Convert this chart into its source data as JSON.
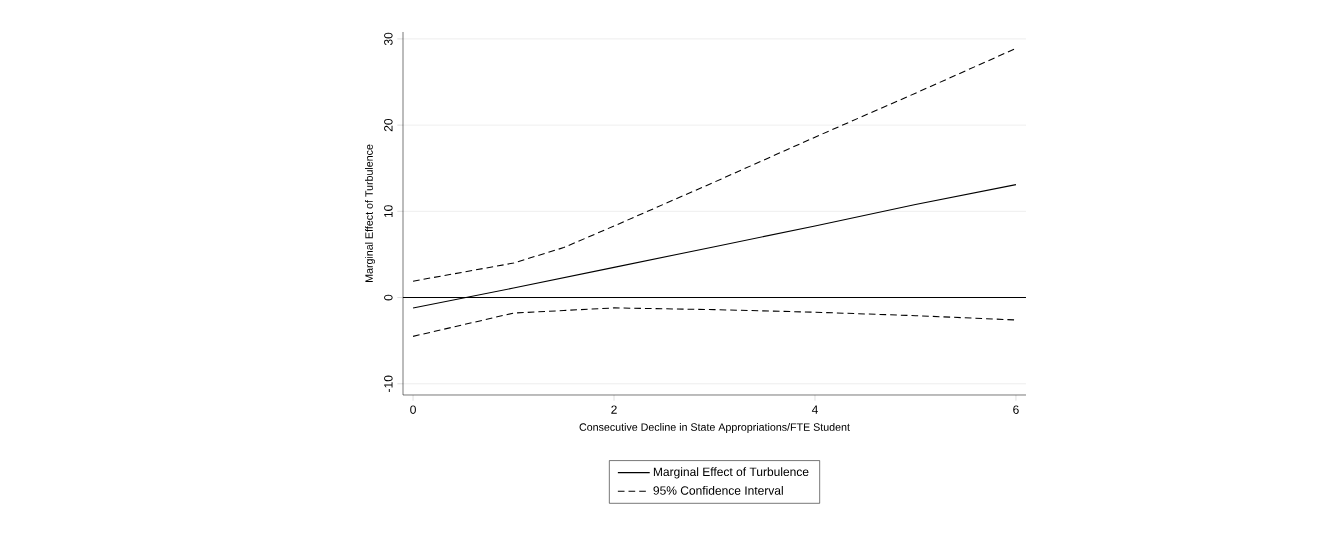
{
  "chart_data": {
    "type": "line",
    "xlabel": "Consecutive Decline in State Appropriations/FTE Student",
    "ylabel": "Marginal Effect of Turbulence",
    "xlim": [
      -0.1,
      6.1
    ],
    "ylim": [
      -11.3,
      30.8
    ],
    "xticks": [
      0,
      2,
      4,
      6
    ],
    "yticks": [
      -10,
      0,
      10,
      20,
      30
    ],
    "grid": "y",
    "legend": "bottom",
    "ref_lines": [
      {
        "axis": "y",
        "value": 0,
        "color": "#000000",
        "line_style": "solid"
      }
    ],
    "series": [
      {
        "name": "Marginal Effect of Turbulence",
        "color": "#000000",
        "line_style": "solid",
        "x": [
          0,
          1,
          2,
          3,
          4,
          5,
          6
        ],
        "values": [
          -1.2,
          1.1,
          3.5,
          5.9,
          8.3,
          10.8,
          13.1
        ]
      },
      {
        "name": "95% Confidence Interval",
        "color": "#000000",
        "line_style": "dashed",
        "x": [
          0,
          1,
          1.5,
          2,
          3,
          4,
          5,
          6
        ],
        "values": [
          1.9,
          4.0,
          5.8,
          8.3,
          13.4,
          18.6,
          23.7,
          28.9
        ]
      },
      {
        "color": "#000000",
        "line_style": "dashed",
        "x": [
          0,
          1,
          1.5,
          2,
          3,
          4,
          5,
          6
        ],
        "values": [
          -4.5,
          -1.8,
          -1.5,
          -1.2,
          -1.4,
          -1.7,
          -2.1,
          -2.6
        ]
      }
    ]
  }
}
